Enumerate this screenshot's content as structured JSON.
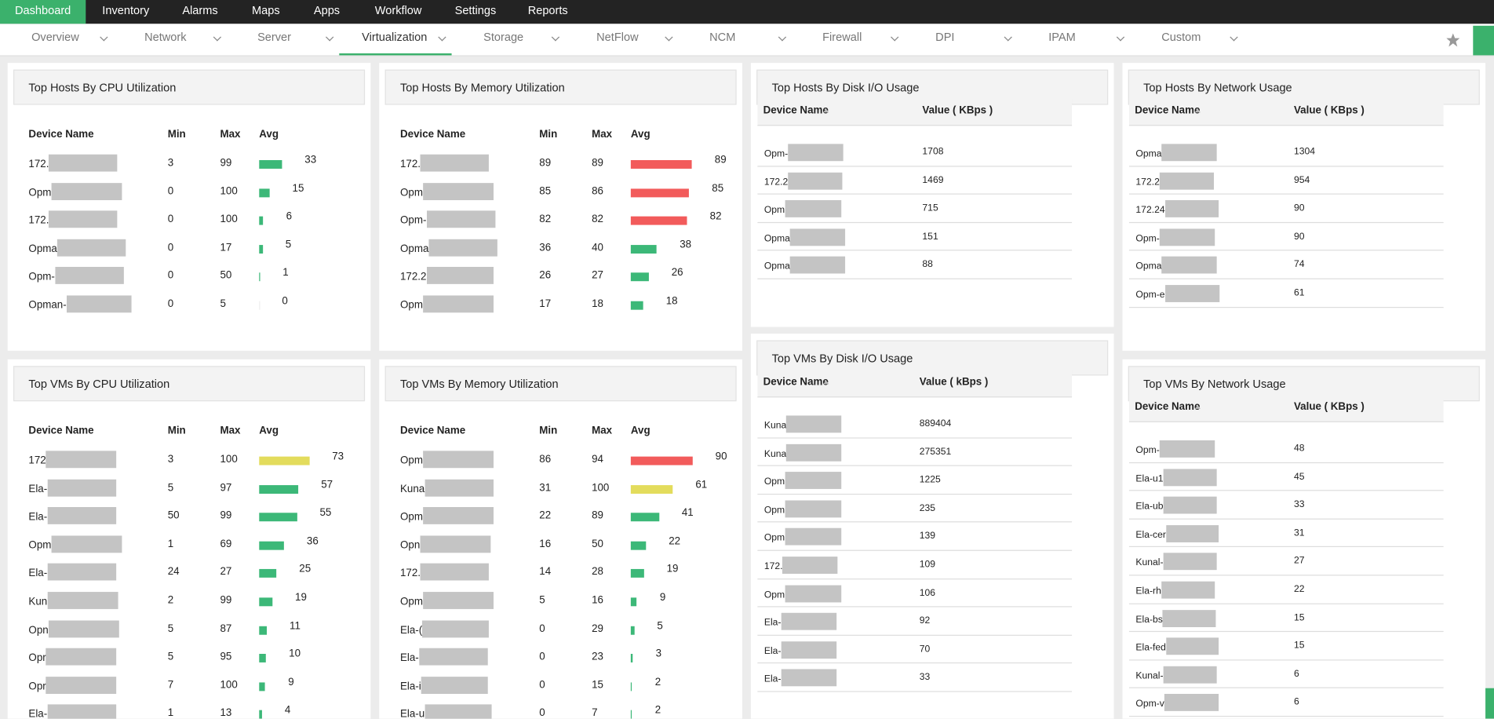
{
  "nav": {
    "main": [
      "Dashboard",
      "Inventory",
      "Alarms",
      "Maps",
      "Apps",
      "Workflow",
      "Settings",
      "Reports"
    ],
    "sub": [
      "Overview",
      "Network",
      "Server",
      "Virtualization",
      "Storage",
      "NetFlow",
      "NCM",
      "Firewall",
      "DPI",
      "IPAM",
      "Custom"
    ]
  },
  "widgets": [
    {
      "title": "Top Hosts By CPU Utilization",
      "columns": [
        "Device Name",
        "Min",
        "Max",
        "Avg"
      ],
      "rows": [
        {
          "name": "172.",
          "min": 3,
          "max": 99,
          "avg": 33,
          "color": "#3cb878"
        },
        {
          "name": "Opm",
          "min": 0,
          "max": 100,
          "avg": 15,
          "color": "#3cb878"
        },
        {
          "name": "172.",
          "min": 0,
          "max": 100,
          "avg": 6,
          "color": "#3cb878"
        },
        {
          "name": "Opma",
          "min": 0,
          "max": 17,
          "avg": 5,
          "color": "#3cb878"
        },
        {
          "name": "Opm-",
          "min": 0,
          "max": 50,
          "avg": 1,
          "color": "#3cb878"
        },
        {
          "name": "Opman-",
          "min": 0,
          "max": 5,
          "avg": 0,
          "color": "#3cb878"
        }
      ]
    },
    {
      "title": "Top Hosts By Memory Utilization",
      "columns": [
        "Device Name",
        "Min",
        "Max",
        "Avg"
      ],
      "rows": [
        {
          "name": "172.",
          "min": 89,
          "max": 89,
          "avg": 89,
          "color": "#f25b5b"
        },
        {
          "name": "Opm",
          "min": 85,
          "max": 86,
          "avg": 85,
          "color": "#f25b5b"
        },
        {
          "name": "Opm-",
          "min": 82,
          "max": 82,
          "avg": 82,
          "color": "#f25b5b"
        },
        {
          "name": "Opma",
          "min": 36,
          "max": 40,
          "avg": 38,
          "color": "#3cb878"
        },
        {
          "name": "172.2",
          "min": 26,
          "max": 27,
          "avg": 26,
          "color": "#3cb878"
        },
        {
          "name": "Opm",
          "min": 17,
          "max": 18,
          "avg": 18,
          "color": "#3cb878"
        }
      ]
    },
    {
      "title": "Top Hosts By Disk I/O Usage",
      "columns": [
        "Device Name",
        "Value ( KBps )"
      ],
      "rows": [
        {
          "name": "Opm-",
          "value": 1708
        },
        {
          "name": "172.2",
          "value": 1469
        },
        {
          "name": "Opm",
          "value": 715
        },
        {
          "name": "Opma",
          "value": 151
        },
        {
          "name": "Opma",
          "value": 88
        }
      ]
    },
    {
      "title": "Top Hosts By Network Usage",
      "columns": [
        "Device Name",
        "Value ( KBps )"
      ],
      "rows": [
        {
          "name": "Opma",
          "value": 1304
        },
        {
          "name": "172.2",
          "value": 954
        },
        {
          "name": "172.24",
          "value": 90
        },
        {
          "name": "Opm-",
          "value": 90
        },
        {
          "name": "Opma",
          "value": 74
        },
        {
          "name": "Opm-e",
          "value": 61
        }
      ]
    },
    {
      "title": "Top VMs By CPU Utilization",
      "columns": [
        "Device Name",
        "Min",
        "Max",
        "Avg"
      ],
      "rows": [
        {
          "name": "172",
          "min": 3,
          "max": 100,
          "avg": 73,
          "color": "#e3dc5c"
        },
        {
          "name": "Ela-",
          "min": 5,
          "max": 97,
          "avg": 57,
          "color": "#3cb878"
        },
        {
          "name": "Ela-",
          "min": 50,
          "max": 99,
          "avg": 55,
          "color": "#3cb878"
        },
        {
          "name": "Opm",
          "min": 1,
          "max": 69,
          "avg": 36,
          "color": "#3cb878"
        },
        {
          "name": "Ela-",
          "min": 24,
          "max": 27,
          "avg": 25,
          "color": "#3cb878"
        },
        {
          "name": "Kun",
          "min": 2,
          "max": 99,
          "avg": 19,
          "color": "#3cb878"
        },
        {
          "name": "Opn",
          "min": 5,
          "max": 87,
          "avg": 11,
          "color": "#3cb878"
        },
        {
          "name": "Opr",
          "min": 5,
          "max": 95,
          "avg": 10,
          "color": "#3cb878"
        },
        {
          "name": "Opr",
          "min": 7,
          "max": 100,
          "avg": 9,
          "color": "#3cb878"
        },
        {
          "name": "Ela-",
          "min": 1,
          "max": 13,
          "avg": 4,
          "color": "#3cb878"
        }
      ]
    },
    {
      "title": "Top VMs By Memory Utilization",
      "columns": [
        "Device Name",
        "Min",
        "Max",
        "Avg"
      ],
      "rows": [
        {
          "name": "Opm",
          "min": 86,
          "max": 94,
          "avg": 90,
          "color": "#f25b5b"
        },
        {
          "name": "Kuna",
          "min": 31,
          "max": 100,
          "avg": 61,
          "color": "#e3dc5c"
        },
        {
          "name": "Opm",
          "min": 22,
          "max": 89,
          "avg": 41,
          "color": "#3cb878"
        },
        {
          "name": "Opn",
          "min": 16,
          "max": 50,
          "avg": 22,
          "color": "#3cb878"
        },
        {
          "name": "172.",
          "min": 14,
          "max": 28,
          "avg": 19,
          "color": "#3cb878"
        },
        {
          "name": "Opm",
          "min": 5,
          "max": 16,
          "avg": 9,
          "color": "#3cb878"
        },
        {
          "name": "Ela-(",
          "min": 0,
          "max": 29,
          "avg": 5,
          "color": "#3cb878"
        },
        {
          "name": "Ela-",
          "min": 0,
          "max": 23,
          "avg": 3,
          "color": "#3cb878"
        },
        {
          "name": "Ela-i",
          "min": 0,
          "max": 15,
          "avg": 2,
          "color": "#3cb878"
        },
        {
          "name": "Ela-u",
          "min": 0,
          "max": 7,
          "avg": 2,
          "color": "#3cb878"
        }
      ]
    },
    {
      "title": "Top VMs By Disk I/O Usage",
      "columns": [
        "Device Name",
        "Value ( kBps )"
      ],
      "rows": [
        {
          "name": "Kuna",
          "value": 889404
        },
        {
          "name": "Kuna",
          "value": 275351
        },
        {
          "name": "Opm",
          "value": 1225
        },
        {
          "name": "Opm",
          "value": 235
        },
        {
          "name": "Opm",
          "value": 139
        },
        {
          "name": "172.",
          "value": 109
        },
        {
          "name": "Opm",
          "value": 106
        },
        {
          "name": "Ela-",
          "value": 92
        },
        {
          "name": "Ela-",
          "value": 70
        },
        {
          "name": "Ela-",
          "value": 33
        }
      ]
    },
    {
      "title": "Top VMs By Network Usage",
      "columns": [
        "Device Name",
        "Value ( KBps )"
      ],
      "rows": [
        {
          "name": "Opm-",
          "value": 48
        },
        {
          "name": "Ela-u1",
          "value": 45
        },
        {
          "name": "Ela-ub",
          "value": 33
        },
        {
          "name": "Ela-cer",
          "value": 31
        },
        {
          "name": "Kunal-",
          "value": 27
        },
        {
          "name": "Ela-rh",
          "value": 22
        },
        {
          "name": "Ela-bs",
          "value": 15
        },
        {
          "name": "Ela-fed",
          "value": 15
        },
        {
          "name": "Kunal-",
          "value": 6
        },
        {
          "name": "Opm-v",
          "value": 6
        }
      ]
    }
  ]
}
